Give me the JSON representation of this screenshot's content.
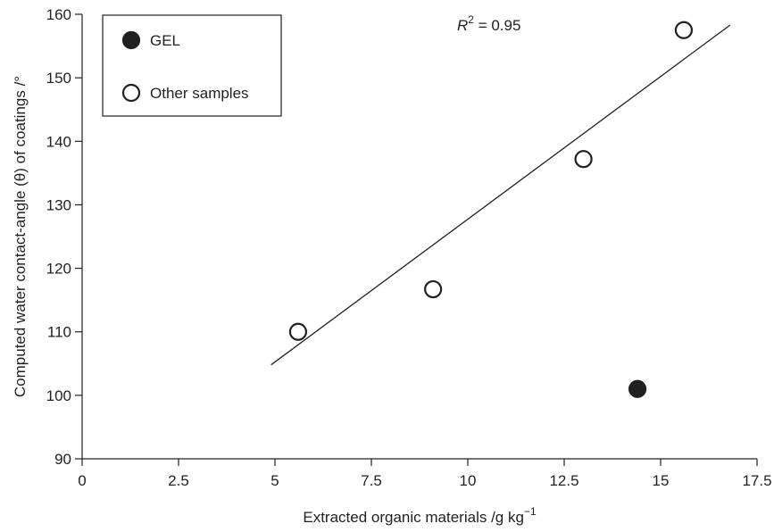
{
  "chart_data": {
    "type": "scatter",
    "title": "",
    "xlabel": "Extracted organic materials /g kg",
    "xlabel_sup": "−1",
    "ylabel": "Computed water contact-angle (θ) of coatings /°",
    "xlim": [
      0,
      17.5
    ],
    "ylim": [
      90,
      160
    ],
    "xticks": [
      "0",
      "2.5",
      "5",
      "7.5",
      "10",
      "12.5",
      "15",
      "17.5"
    ],
    "yticks": [
      "90",
      "100",
      "110",
      "120",
      "130",
      "140",
      "150",
      "160"
    ],
    "grid": false,
    "legend_position": "top-left",
    "series": [
      {
        "name": "GEL",
        "marker": "filled-circle",
        "color": "#231f20",
        "points": [
          [
            14.4,
            101
          ]
        ]
      },
      {
        "name": "Other samples",
        "marker": "open-circle",
        "color": "#231f20",
        "points": [
          [
            5.6,
            110
          ],
          [
            9.1,
            116.7
          ],
          [
            13.0,
            137.2
          ],
          [
            15.6,
            157.5
          ]
        ]
      }
    ],
    "trendline": {
      "x": [
        4.9,
        16.8
      ],
      "y": [
        104.8,
        158.3
      ]
    },
    "annotation": {
      "prefix": "R",
      "sup": "2",
      "text": " = 0.95"
    }
  }
}
